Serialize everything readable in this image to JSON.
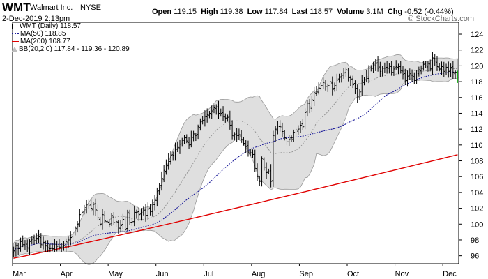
{
  "header": {
    "ticker": "WMT",
    "company": "Walmart Inc.",
    "exchange": "NYSE",
    "datetime": "2-Dec-2019 2:13pm",
    "brand": "© StockCharts.com",
    "quote": {
      "open_label": "Open",
      "open": "119.15",
      "high_label": "High",
      "high": "119.38",
      "low_label": "Low",
      "low": "117.84",
      "last_label": "Last",
      "last": "118.57",
      "volume_label": "Volume",
      "volume": "3.1M",
      "chg_label": "Chg",
      "chg": "-0.52 (-0.44%)"
    }
  },
  "legend": {
    "wmt": "WMT (Daily) 118.57",
    "ma50": "MA(50) 118.85",
    "ma200": "MA(200) 108.77",
    "bb": "BB(20,2.0) 117.84 - 119.36 - 120.89"
  },
  "colors": {
    "ma50": "#1a1a99",
    "ma200": "#e00000",
    "bb_fill": "#d9d9d9",
    "bb_line": "#999999",
    "price": "#000000",
    "last_bar": "#00aa00"
  },
  "chart_data": {
    "type": "ohlc",
    "ylim": [
      95,
      125.5
    ],
    "y_ticks": [
      96,
      98,
      100,
      102,
      104,
      106,
      108,
      110,
      112,
      114,
      116,
      118,
      120,
      122,
      124
    ],
    "x_ticks": [
      "Mar",
      "Apr",
      "May",
      "Jun",
      "Jul",
      "Aug",
      "Sep",
      "Oct",
      "Nov",
      "Dec"
    ],
    "month_boundaries": [
      0,
      21,
      42,
      63,
      84,
      105,
      126,
      147,
      168,
      189
    ],
    "closes": [
      96.6,
      97.3,
      96.9,
      97.8,
      97.4,
      97.6,
      97.0,
      97.8,
      98.1,
      97.9,
      98.2,
      98.4,
      97.4,
      97.7,
      97.3,
      97.0,
      96.9,
      96.9,
      97.6,
      97.2,
      97.1,
      97.0,
      97.3,
      97.8,
      98.0,
      98.3,
      99.0,
      99.5,
      100.0,
      101.2,
      101.5,
      101.9,
      102.5,
      102.3,
      102.0,
      102.5,
      101.8,
      100.8,
      100.0,
      101.2,
      100.4,
      100.3,
      100.0,
      101.1,
      100.2,
      100.3,
      99.5,
      99.8,
      100.6,
      99.3,
      101.5,
      100.2,
      100.3,
      101.5,
      101.5,
      101.2,
      101.5,
      101.7,
      101.1,
      101.9,
      101.4,
      102.5,
      103.0,
      104.1,
      104.9,
      105.8,
      106.8,
      107.6,
      108.1,
      108.7,
      108.7,
      109.5,
      109.7,
      110.1,
      110.6,
      110.9,
      110.5,
      110.0,
      111.0,
      111.4,
      111.2,
      112.3,
      112.9,
      113.1,
      113.6,
      113.8,
      114.0,
      114.3,
      114.7,
      114.8,
      114.0,
      114.0,
      113.6,
      113.4,
      113.5,
      112.5,
      111.2,
      111.3,
      111.2,
      111.3,
      110.7,
      110.2,
      109.8,
      109.1,
      109.0,
      108.8,
      107.0,
      106.0,
      105.4,
      108.3,
      107.2,
      106.5,
      106.6,
      105.4,
      111.2,
      112.0,
      112.4,
      112.3,
      111.7,
      110.9,
      110.4,
      110.7,
      110.9,
      111.6,
      111.9,
      112.0,
      112.5,
      112.3,
      114.1,
      115.3,
      114.8,
      115.7,
      116.6,
      116.7,
      117.2,
      117.5,
      117.9,
      117.4,
      117.5,
      118.0,
      117.0,
      117.5,
      118.2,
      118.5,
      118.8,
      119.1,
      119.5,
      118.6,
      118.3,
      117.6,
      117.1,
      116.1,
      116.7,
      118.1,
      118.3,
      118.6,
      119.7,
      119.7,
      120.2,
      120.3,
      119.7,
      119.3,
      119.7,
      119.7,
      119.8,
      120.0,
      119.2,
      119.6,
      119.9,
      119.7,
      119.4,
      118.9,
      118.0,
      118.7,
      119.0,
      118.8,
      118.2,
      119.1,
      119.5,
      119.7,
      120.2,
      120.0,
      120.3,
      119.6,
      121.0,
      120.6,
      119.9,
      119.6,
      119.9,
      119.3,
      119.8,
      119.3,
      119.8,
      119.2,
      119.2,
      118.57
    ],
    "last": {
      "open": 119.15,
      "high": 119.38,
      "low": 117.84,
      "close": 118.57
    },
    "bb_period": 20,
    "bb_stddev": 2.0,
    "ma50_period": 50,
    "ma200_start": 95.7
  }
}
